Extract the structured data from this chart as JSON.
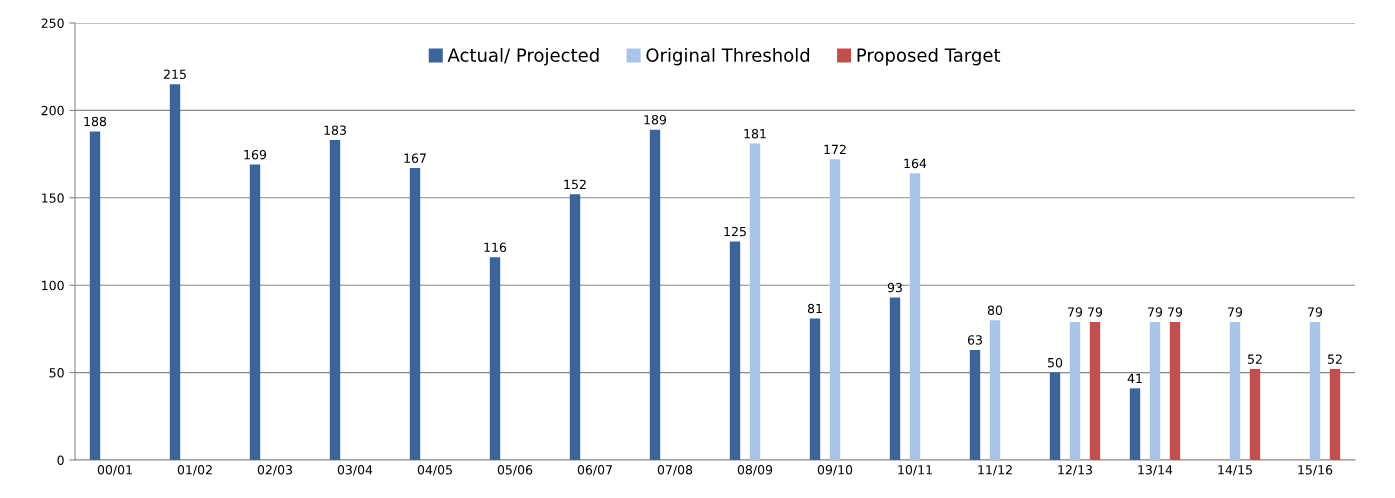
{
  "chart_data": {
    "type": "bar",
    "categories": [
      "00/01",
      "01/02",
      "02/03",
      "03/04",
      "04/05",
      "05/06",
      "06/07",
      "07/08",
      "08/09",
      "09/10",
      "10/11",
      "11/12",
      "12/13",
      "13/14",
      "14/15",
      "15/16"
    ],
    "series": [
      {
        "name": "Actual/ Projected",
        "color": "#3b6499",
        "values": [
          188,
          215,
          169,
          183,
          167,
          116,
          152,
          189,
          125,
          81,
          93,
          63,
          50,
          41,
          null,
          null
        ]
      },
      {
        "name": "Original Threshold",
        "color": "#a9c4e8",
        "values": [
          null,
          null,
          null,
          null,
          null,
          null,
          null,
          null,
          181,
          172,
          164,
          80,
          79,
          79,
          79,
          79
        ]
      },
      {
        "name": "Proposed Target",
        "color": "#c0504d",
        "values": [
          null,
          null,
          null,
          null,
          null,
          null,
          null,
          null,
          null,
          null,
          null,
          null,
          79,
          79,
          52,
          52
        ]
      }
    ],
    "ylim": [
      0,
      250
    ],
    "yticks": [
      0,
      50,
      100,
      150,
      200,
      250
    ],
    "grid": "y",
    "legend": "top",
    "data_labels": true
  }
}
